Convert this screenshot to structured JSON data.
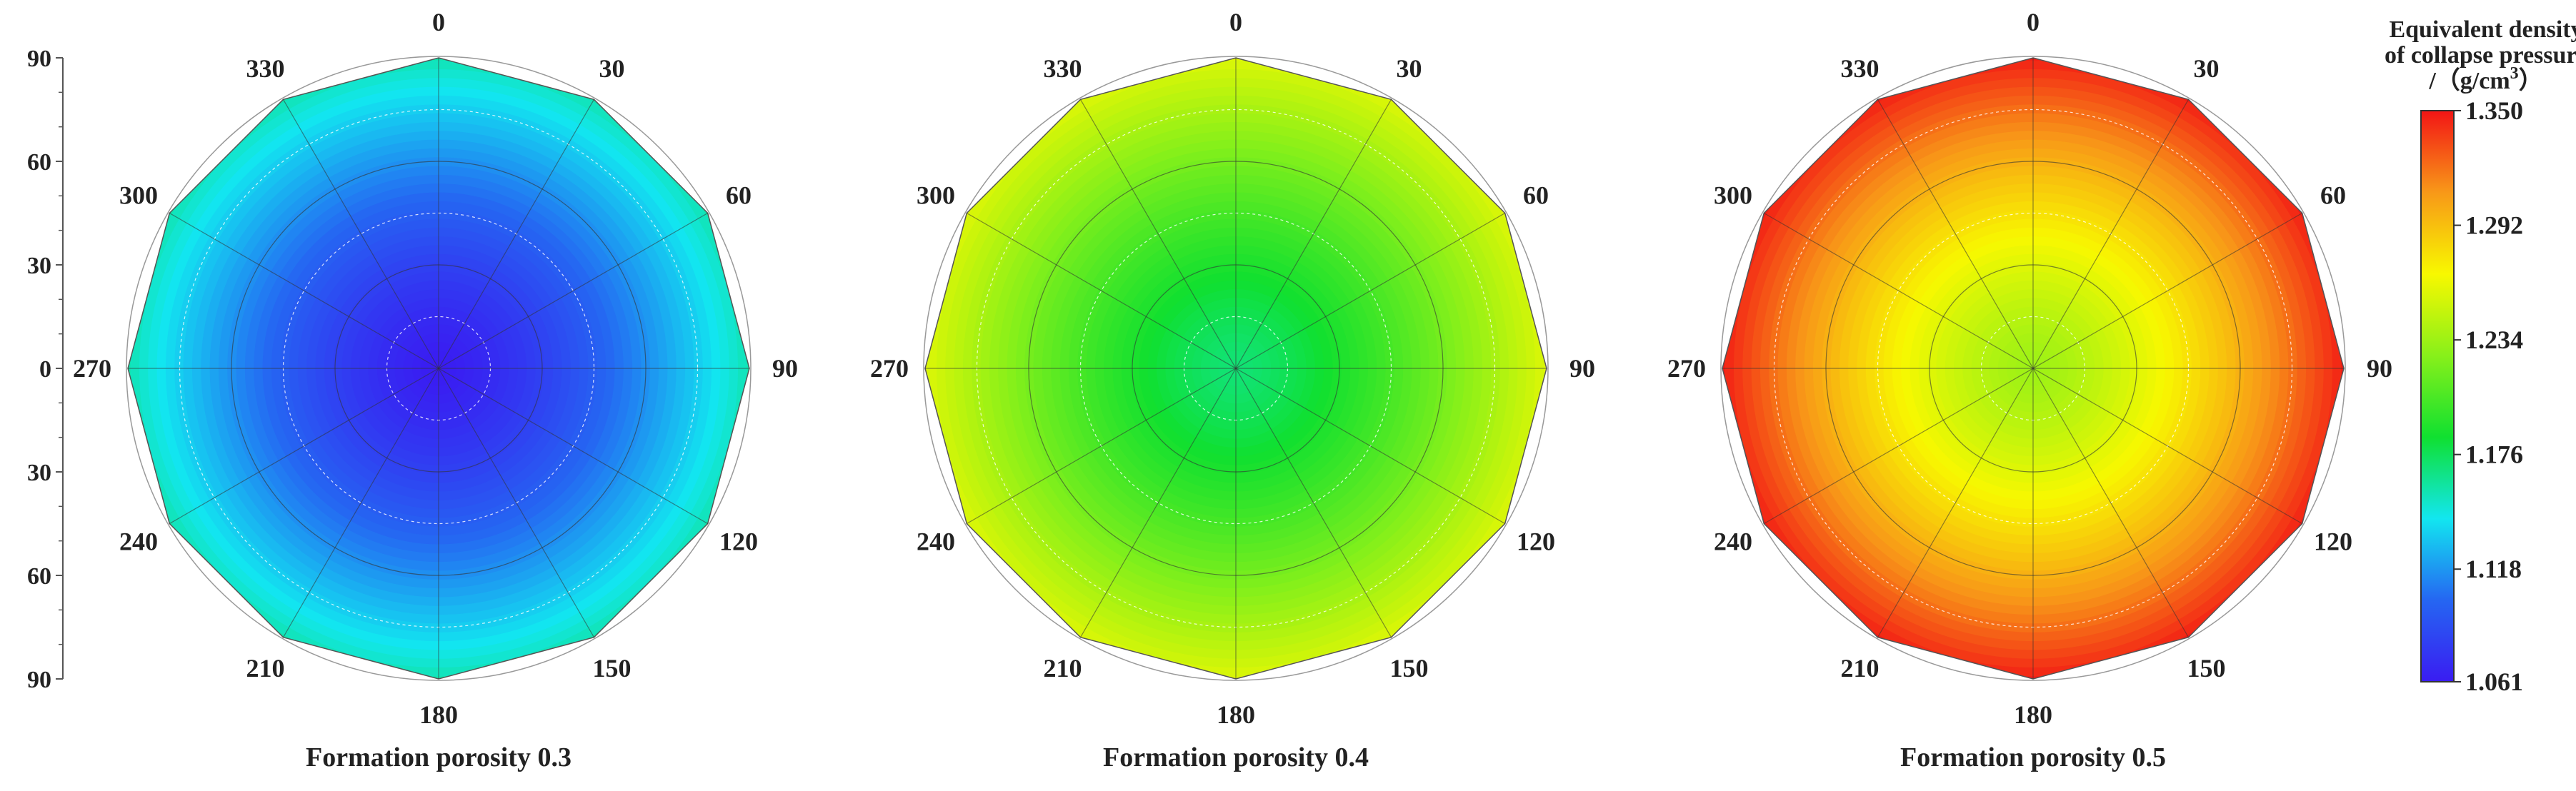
{
  "chart_data": [
    {
      "type": "polar-contour",
      "caption": "Formation porosity 0.3",
      "angular_ticks": [
        "0",
        "30",
        "60",
        "90",
        "120",
        "150",
        "180",
        "210",
        "240",
        "270",
        "300",
        "330"
      ],
      "radial_tick_labels": [
        "90",
        "60",
        "30",
        "0",
        "30",
        "60",
        "90"
      ],
      "center_value": 1.061,
      "edge_value": 1.16
    },
    {
      "type": "polar-contour",
      "caption": "Formation porosity 0.4",
      "angular_ticks": [
        "0",
        "30",
        "60",
        "90",
        "120",
        "150",
        "180",
        "210",
        "240",
        "270",
        "300",
        "330"
      ],
      "center_value": 1.17,
      "edge_value": 1.26
    },
    {
      "type": "polar-contour",
      "caption": "Formation porosity 0.5",
      "angular_ticks": [
        "0",
        "30",
        "60",
        "90",
        "120",
        "150",
        "180",
        "210",
        "240",
        "270",
        "300",
        "330"
      ],
      "center_value": 1.234,
      "edge_value": 1.35
    }
  ],
  "colorbar": {
    "title_lines": [
      "Equivalent density",
      "of collapse pressure"
    ],
    "unit_prefix": "/（g/cm",
    "unit_sup": "3",
    "unit_suffix": "）",
    "min": 1.061,
    "max": 1.35,
    "ticks": [
      "1.350",
      "1.292",
      "1.234",
      "1.176",
      "1.118",
      "1.061"
    ],
    "colors": [
      "#3a1cf2",
      "#2566f2",
      "#12e6f0",
      "#10e030",
      "#88f01a",
      "#f8f800",
      "#f89818",
      "#f21515"
    ]
  }
}
